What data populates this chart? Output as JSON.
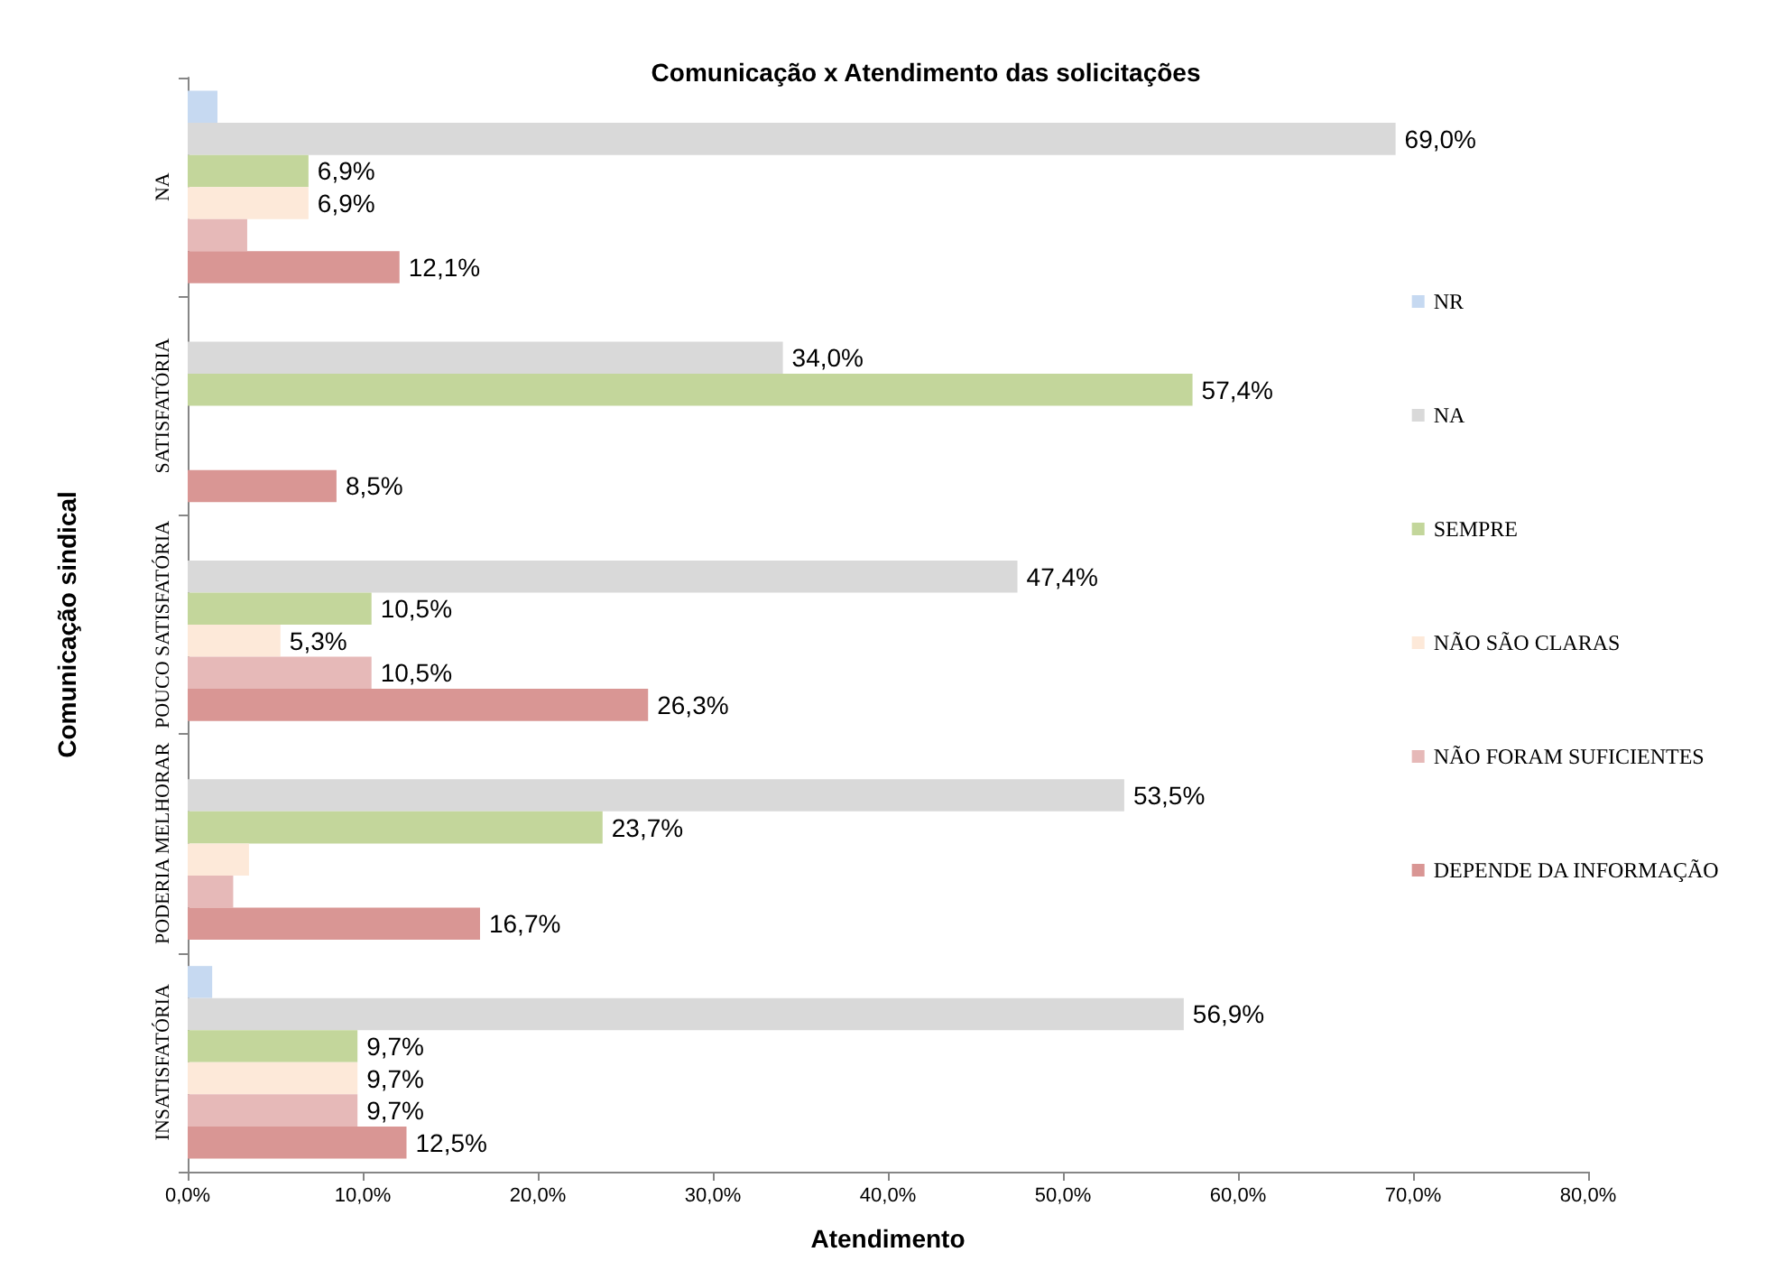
{
  "chart_data": {
    "type": "bar",
    "orientation": "horizontal",
    "title": "Comunicação x Atendimento das solicitações",
    "xlabel": "Atendimento",
    "ylabel": "Comunicação sindical",
    "categories": [
      "NA",
      "SATISFATÓRIA",
      "POUCO SATISFATÓRIA",
      "PODERIA MELHORAR",
      "INSATISFATÓRIA"
    ],
    "series": [
      {
        "name": "NR",
        "color": "#c6d9f1",
        "values": [
          1.7,
          null,
          null,
          null,
          1.4
        ],
        "value_labels": [
          null,
          null,
          null,
          null,
          null
        ]
      },
      {
        "name": "NA",
        "color": "#d9d9d9",
        "values": [
          69.0,
          34.0,
          47.4,
          53.5,
          56.9
        ],
        "value_labels": [
          "69,0%",
          "34,0%",
          "47,4%",
          "53,5%",
          "56,9%"
        ]
      },
      {
        "name": "SEMPRE",
        "color": "#c3d69b",
        "values": [
          6.9,
          57.4,
          10.5,
          23.7,
          9.7
        ],
        "value_labels": [
          "6,9%",
          "57,4%",
          "10,5%",
          "23,7%",
          "9,7%"
        ]
      },
      {
        "name": "NÃO SÃO CLARAS",
        "color": "#fde9d9",
        "values": [
          6.9,
          null,
          5.3,
          3.5,
          9.7
        ],
        "value_labels": [
          "6,9%",
          null,
          "5,3%",
          null,
          "9,7%"
        ]
      },
      {
        "name": "NÃO FORAM SUFICIENTES",
        "color": "#e6b9b8",
        "values": [
          3.4,
          null,
          10.5,
          2.6,
          9.7
        ],
        "value_labels": [
          null,
          null,
          "10,5%",
          null,
          "9,7%"
        ]
      },
      {
        "name": "DEPENDE DA INFORMAÇÃO",
        "color": "#d99694",
        "values": [
          12.1,
          8.5,
          26.3,
          16.7,
          12.5
        ],
        "value_labels": [
          "12,1%",
          "8,5%",
          "26,3%",
          "16,7%",
          "12,5%"
        ]
      }
    ],
    "xlim": [
      0,
      80
    ],
    "xticks": [
      {
        "value": 0,
        "label": "0,0%"
      },
      {
        "value": 10,
        "label": "10,0%"
      },
      {
        "value": 20,
        "label": "20,0%"
      },
      {
        "value": 30,
        "label": "30,0%"
      },
      {
        "value": 40,
        "label": "40,0%"
      },
      {
        "value": 50,
        "label": "50,0%"
      },
      {
        "value": 60,
        "label": "60,0%"
      },
      {
        "value": 70,
        "label": "70,0%"
      },
      {
        "value": 80,
        "label": "80,0%"
      }
    ],
    "grid": false,
    "legend": "right"
  }
}
